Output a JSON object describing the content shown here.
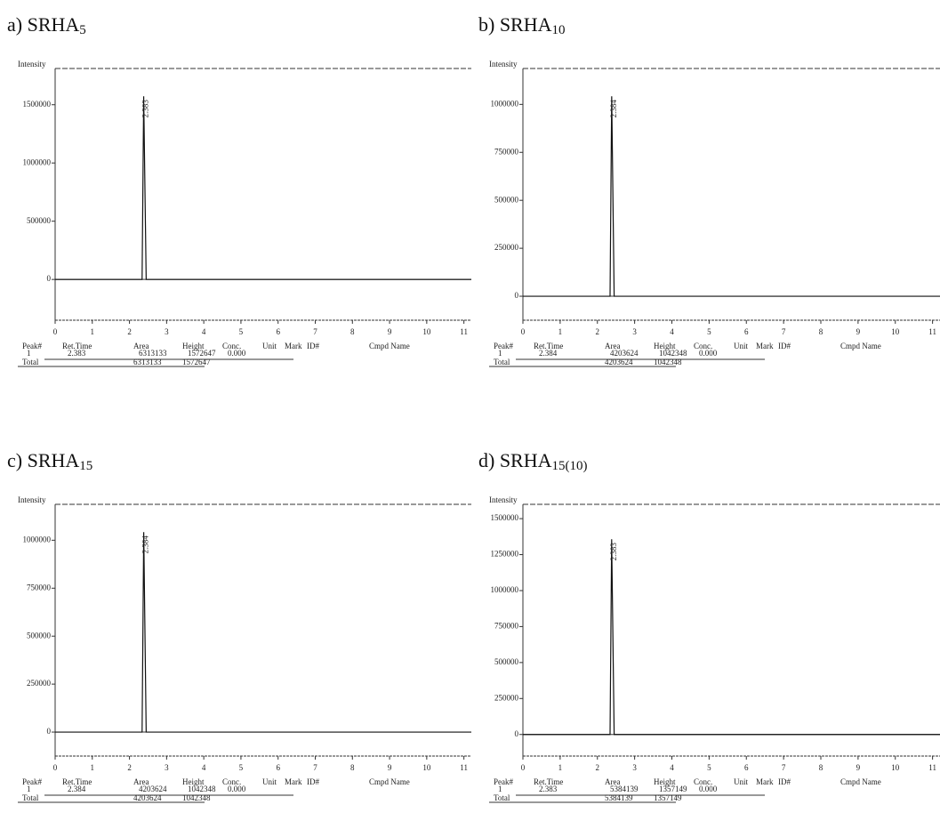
{
  "chart_data": [
    {
      "type": "line",
      "title": {
        "text": "a) SRHA",
        "subscript": "5"
      },
      "ylabel": "Intensity",
      "x": [
        0,
        2.34,
        2.383,
        2.45,
        11.2
      ],
      "values": [
        0,
        0,
        1572647,
        0,
        0
      ],
      "color": "#111111",
      "peak_label": "2.383",
      "xlim": [
        0,
        11.2
      ],
      "xticks": [
        0,
        1,
        2,
        3,
        4,
        5,
        6,
        7,
        8,
        9,
        10,
        11
      ],
      "ylim": [
        -350000,
        1750000
      ],
      "yticks": [
        0,
        500000,
        1000000,
        1500000
      ],
      "table": {
        "columns": [
          "Peak#",
          "Ret.Time",
          "Area",
          "Height",
          "Conc.",
          "Unit",
          "Mark",
          "ID#",
          "Cmpd Name"
        ],
        "rows": [
          [
            "1",
            "2.383",
            "6313133",
            "1572647",
            "0.000"
          ]
        ],
        "total": [
          "Total",
          "6313133",
          "1572647"
        ]
      }
    },
    {
      "type": "line",
      "title": {
        "text": "b) SRHA",
        "subscript": "10"
      },
      "ylabel": "Intensity",
      "x": [
        0,
        2.34,
        2.384,
        2.45,
        11.2
      ],
      "values": [
        0,
        0,
        1042348,
        0,
        0
      ],
      "color": "#111111",
      "peak_label": "2.384",
      "xlim": [
        0,
        11.2
      ],
      "xticks": [
        0,
        1,
        2,
        3,
        4,
        5,
        6,
        7,
        8,
        9,
        10,
        11
      ],
      "ylim": [
        -125000,
        1150000
      ],
      "yticks": [
        0,
        250000,
        500000,
        750000,
        1000000
      ],
      "table": {
        "columns": [
          "Peak#",
          "Ret.Time",
          "Area",
          "Height",
          "Conc.",
          "Unit",
          "Mark",
          "ID#",
          "Cmpd Name"
        ],
        "rows": [
          [
            "1",
            "2.384",
            "4203624",
            "1042348",
            "0.000"
          ]
        ],
        "total": [
          "Total",
          "4203624",
          "1042348"
        ]
      }
    },
    {
      "type": "line",
      "title": {
        "text": "c) SRHA",
        "subscript": "15"
      },
      "ylabel": "Intensity",
      "x": [
        0,
        2.34,
        2.384,
        2.45,
        11.2
      ],
      "values": [
        0,
        0,
        1042348,
        0,
        0
      ],
      "color": "#111111",
      "peak_label": "2.384",
      "xlim": [
        0,
        11.2
      ],
      "xticks": [
        0,
        1,
        2,
        3,
        4,
        5,
        6,
        7,
        8,
        9,
        10,
        11
      ],
      "ylim": [
        -125000,
        1150000
      ],
      "yticks": [
        0,
        250000,
        500000,
        750000,
        1000000
      ],
      "table": {
        "columns": [
          "Peak#",
          "Ret.Time",
          "Area",
          "Height",
          "Conc.",
          "Unit",
          "Mark",
          "ID#",
          "Cmpd Name"
        ],
        "rows": [
          [
            "1",
            "2.384",
            "4203624",
            "1042348",
            "0.000"
          ]
        ],
        "total": [
          "Total",
          "4203624",
          "1042348"
        ]
      }
    },
    {
      "type": "line",
      "title": {
        "text": "d) SRHA",
        "subscript": "15(10)"
      },
      "ylabel": "Intensity",
      "x": [
        0,
        2.34,
        2.383,
        2.45,
        11.2
      ],
      "values": [
        0,
        0,
        1357149,
        0,
        0
      ],
      "color": "#111111",
      "peak_label": "2.383",
      "xlim": [
        0,
        11.2
      ],
      "xticks": [
        0,
        1,
        2,
        3,
        4,
        5,
        6,
        7,
        8,
        9,
        10,
        11
      ],
      "ylim": [
        -150000,
        1550000
      ],
      "yticks": [
        0,
        250000,
        500000,
        750000,
        1000000,
        1250000,
        1500000
      ],
      "table": {
        "columns": [
          "Peak#",
          "Ret.Time",
          "Area",
          "Height",
          "Conc.",
          "Unit",
          "Mark",
          "ID#",
          "Cmpd Name"
        ],
        "rows": [
          [
            "1",
            "2.383",
            "5384139",
            "1357149",
            "0.000"
          ]
        ],
        "total": [
          "Total",
          "5384139",
          "1357149"
        ]
      }
    }
  ]
}
